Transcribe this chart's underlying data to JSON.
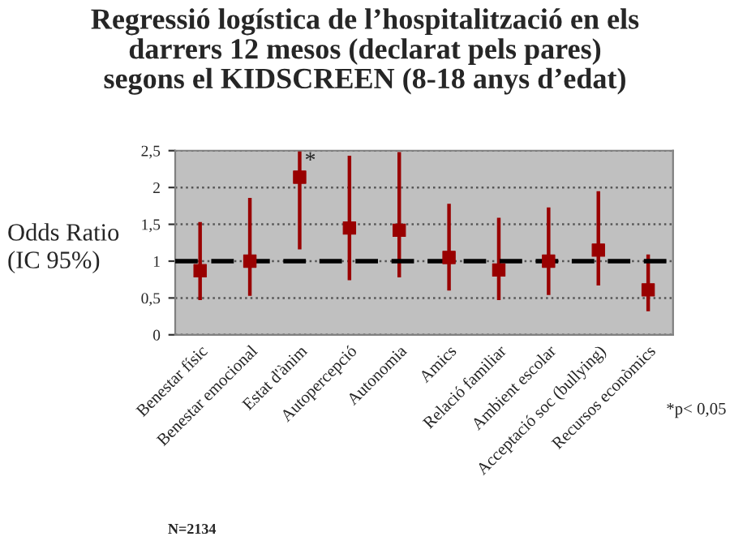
{
  "chart_data": {
    "type": "scatter",
    "title": "Regressió logística de l’hospitalització en els\ndarrers 12 mesos (declarat pels pares)\nsegons el KIDSCREEN (8-18 anys d’edat)",
    "ylabel": "Odds Ratio\n(IC 95%)",
    "categories": [
      "Benestar físic",
      "Benestar emocional",
      "Estat d'ànim",
      "Autopercepció",
      "Autonomia",
      "Amics",
      "Relació familiar",
      "Ambient escolar",
      "Acceptació soc (bullying)",
      "Recursos econòmics"
    ],
    "series": [
      {
        "color": "#990000",
        "values": [
          0.87,
          1.0,
          2.14,
          1.45,
          1.42,
          1.05,
          0.88,
          1.0,
          1.15,
          0.61
        ],
        "errors": [
          [
            0.47,
            1.53
          ],
          [
            0.53,
            1.86
          ],
          [
            1.16,
            2.5
          ],
          [
            0.74,
            2.43
          ],
          [
            0.78,
            2.48
          ],
          [
            0.6,
            1.78
          ],
          [
            0.47,
            1.59
          ],
          [
            0.54,
            1.73
          ],
          [
            0.67,
            1.95
          ],
          [
            0.32,
            1.09
          ]
        ]
      }
    ],
    "marker": "square",
    "ylim": [
      0,
      2.5
    ],
    "yticks": [
      0,
      {
        "value": 0.5,
        "label": "0,5"
      },
      1,
      {
        "value": 1.5,
        "label": "1,5"
      },
      2,
      {
        "value": 2.5,
        "label": "2,5"
      }
    ],
    "grid": "y",
    "ref_lines": [
      {
        "axis": "y",
        "value": 1,
        "color": "#000000",
        "line_style": "dashed"
      }
    ],
    "annotations": [
      {
        "text": "*",
        "x": "Estat d'ànim",
        "y": 2.35
      },
      "*p< 0,05",
      "N=2134"
    ]
  }
}
